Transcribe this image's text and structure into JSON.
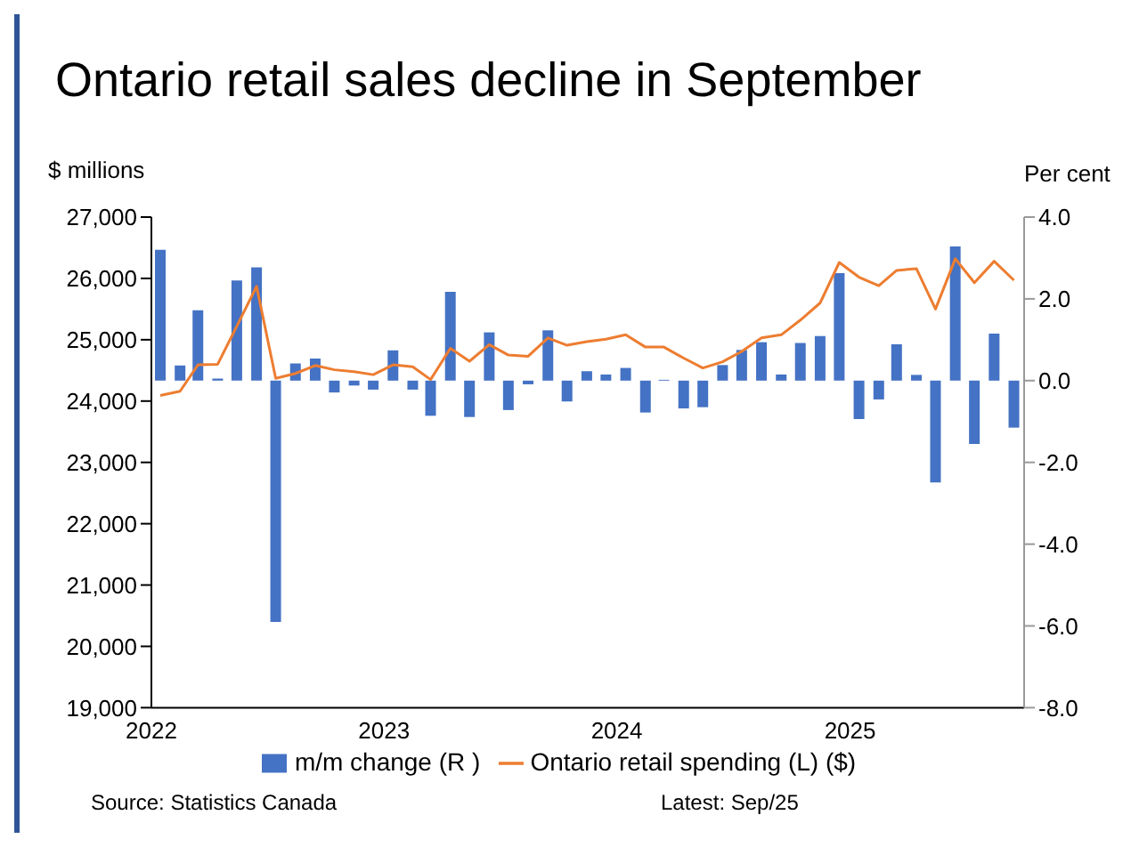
{
  "chart_data": {
    "type": "bar",
    "title": "Ontario retail sales decline in September",
    "ylabel": "$ millions",
    "y2label": "Per cent",
    "x": [
      "2022-01-15",
      "2022-02-15",
      "2022-03-15",
      "2022-04-15",
      "2022-05-15",
      "2022-06-15",
      "2022-07-15",
      "2022-08-15",
      "2022-09-15",
      "2022-10-15",
      "2022-11-15",
      "2022-12-15",
      "2023-01-15",
      "2023-02-15",
      "2023-03-15",
      "2023-04-15",
      "2023-05-15",
      "2023-06-15",
      "2023-07-15",
      "2023-08-15",
      "2023-09-15",
      "2023-10-15",
      "2023-11-15",
      "2023-12-15",
      "2024-01-15",
      "2024-02-15",
      "2024-03-15",
      "2024-04-15",
      "2024-05-15",
      "2024-06-15",
      "2024-07-15",
      "2024-08-15",
      "2024-09-15",
      "2024-10-15",
      "2024-11-15",
      "2024-12-15",
      "2025-01-15",
      "2025-02-15",
      "2025-03-15",
      "2025-04-15",
      "2025-05-15",
      "2025-06-15",
      "2025-07-15",
      "2025-08-15",
      "2025-09-15"
    ],
    "series": [
      {
        "name": "m/m change (R )",
        "axis": "y2",
        "color": "#4472c4",
        "values": [
          3.2,
          0.37,
          1.72,
          0.05,
          2.45,
          2.77,
          -5.9,
          0.42,
          0.54,
          -0.29,
          -0.12,
          -0.22,
          0.74,
          -0.22,
          -0.86,
          2.17,
          -0.89,
          1.18,
          -0.72,
          -0.09,
          1.23,
          -0.51,
          0.23,
          0.15,
          0.31,
          -0.78,
          0.02,
          -0.68,
          -0.65,
          0.38,
          0.75,
          0.94,
          0.15,
          0.92,
          1.09,
          2.63,
          -0.94,
          -0.46,
          0.89,
          0.14,
          -2.49,
          3.28,
          -1.55,
          1.15,
          -1.15
        ]
      },
      {
        "name": "Ontario retail spending (L) ($)",
        "type": "line",
        "color": "#ed7d31",
        "values": [
          24090,
          24160,
          24590,
          24600,
          25220,
          25870,
          24370,
          24450,
          24580,
          24510,
          24480,
          24430,
          24590,
          24560,
          24350,
          24860,
          24650,
          24920,
          24750,
          24730,
          25030,
          24910,
          24970,
          25010,
          25080,
          24880,
          24880,
          24700,
          24540,
          24640,
          24810,
          25030,
          25080,
          25320,
          25600,
          26260,
          26020,
          25880,
          26130,
          26160,
          25500,
          26320,
          25930,
          26280,
          25970
        ]
      }
    ],
    "xlim": [
      "2022",
      "2025-10"
    ],
    "xticks": [
      "2022",
      "2023",
      "2024",
      "2025"
    ],
    "ylim": [
      19000,
      27000
    ],
    "yticks": [
      {
        "value": 19000,
        "label": "19,000"
      },
      {
        "value": 20000,
        "label": "20,000"
      },
      {
        "value": 21000,
        "label": "21,000"
      },
      {
        "value": 22000,
        "label": "22,000"
      },
      {
        "value": 23000,
        "label": "23,000"
      },
      {
        "value": 24000,
        "label": "24,000"
      },
      {
        "value": 25000,
        "label": "25,000"
      },
      {
        "value": 26000,
        "label": "26,000"
      },
      {
        "value": 27000,
        "label": "27,000"
      }
    ],
    "y2lim": [
      -8,
      4
    ],
    "y2ticks": [
      {
        "value": -8,
        "label": "-8.0"
      },
      {
        "value": -6,
        "label": "-6.0"
      },
      {
        "value": -4,
        "label": "-4.0"
      },
      {
        "value": -2,
        "label": "-2.0"
      },
      {
        "value": 0,
        "label": "0.0"
      },
      {
        "value": 2,
        "label": "2.0"
      },
      {
        "value": 4,
        "label": "4.0"
      }
    ],
    "legend": "bottom",
    "marker": "none",
    "annotations": [
      "Source: Statistics Canada",
      "Latest: Sep/25"
    ]
  }
}
